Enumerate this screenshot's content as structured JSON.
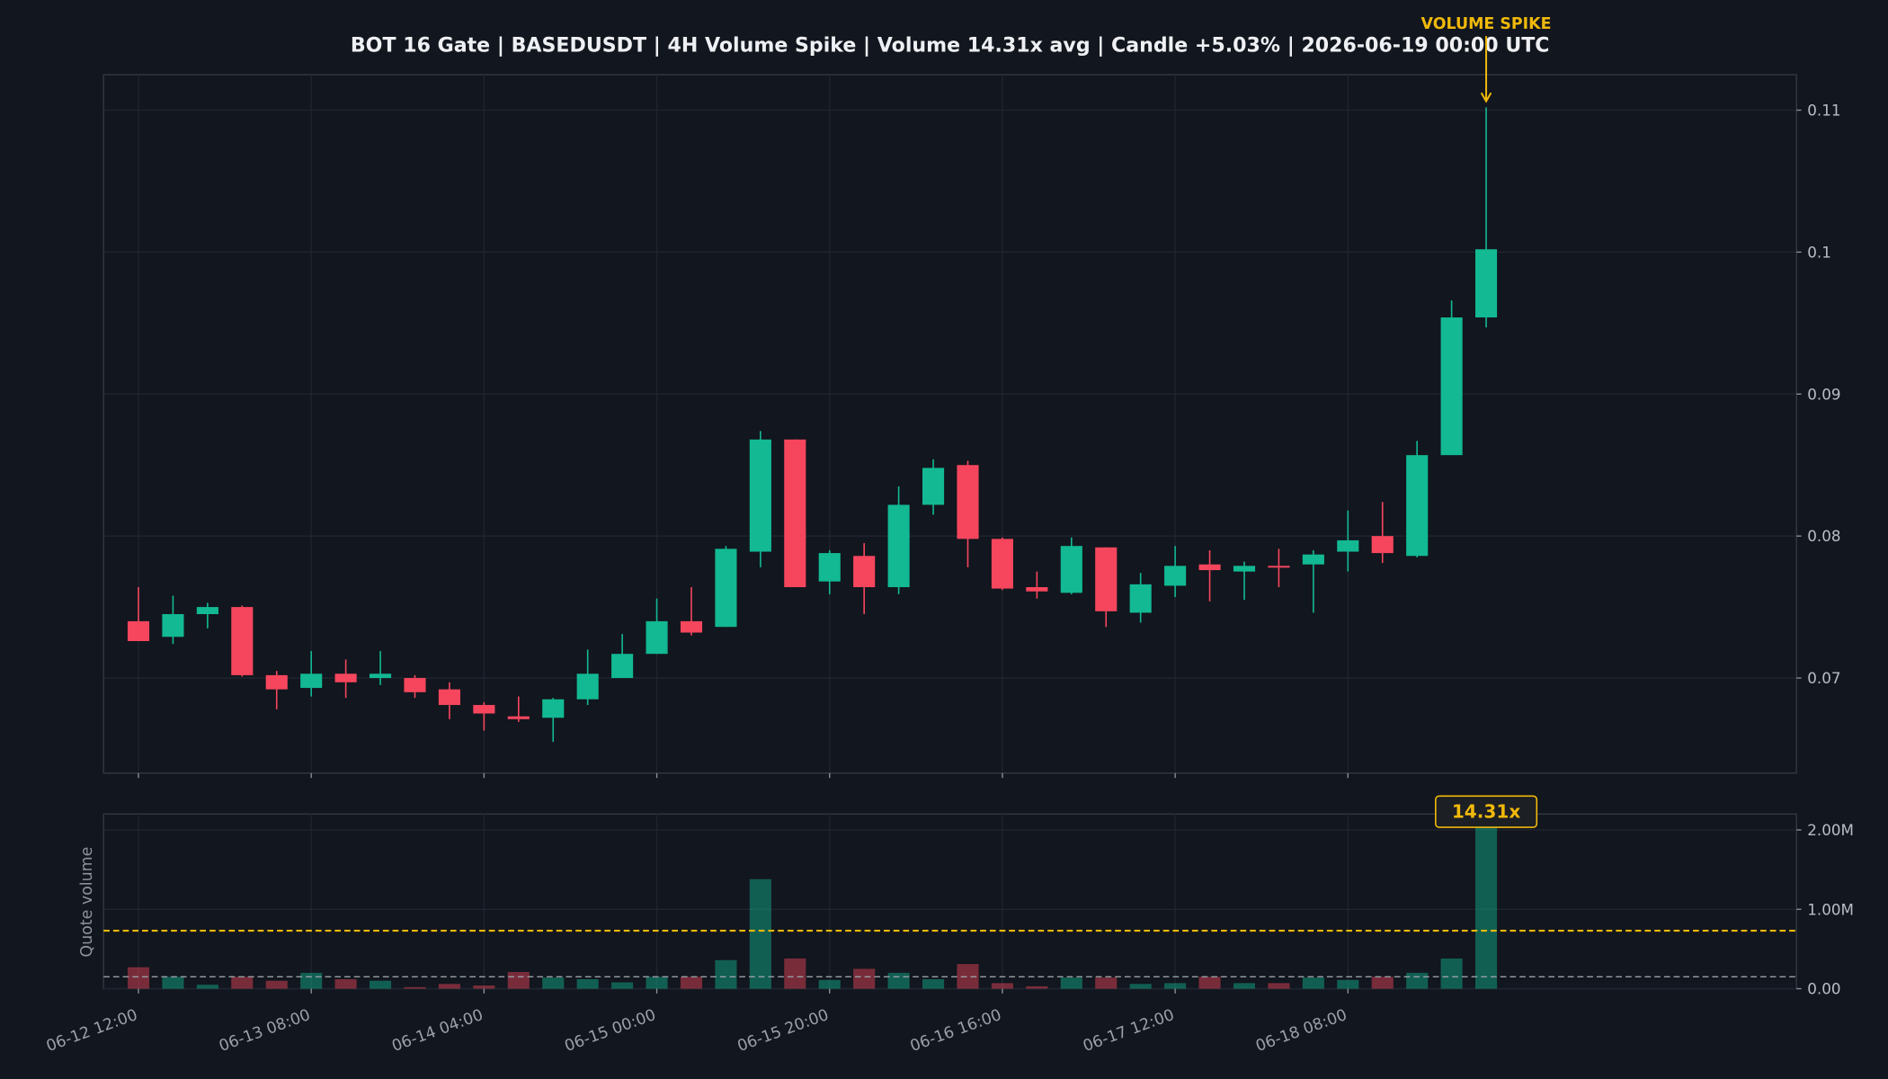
{
  "chart_data": [
    {
      "type": "candlestick",
      "title": "BOT 16 Gate | BASEDUSDT | 4H Volume Spike | Volume 14.31x avg | Candle +5.03% | 2026-06-19 00:00 UTC",
      "x": [
        "06-12 12:00",
        null,
        null,
        null,
        null,
        "06-13 08:00",
        null,
        null,
        null,
        null,
        "06-14 04:00",
        null,
        null,
        null,
        null,
        "06-15 00:00",
        null,
        null,
        null,
        null,
        "06-15 20:00",
        null,
        null,
        null,
        null,
        "06-16 16:00",
        null,
        null,
        null,
        null,
        "06-17 12:00",
        null,
        null,
        null,
        null,
        "06-18 08:00",
        null,
        null,
        null,
        null
      ],
      "open": [
        0.074,
        0.0729,
        0.0745,
        0.075,
        0.0702,
        0.0693,
        0.0703,
        0.07,
        0.07,
        0.0692,
        0.0681,
        0.0673,
        0.0672,
        0.0685,
        0.07,
        0.0717,
        0.074,
        0.0736,
        0.0789,
        0.0868,
        0.0768,
        0.0786,
        0.0764,
        0.0822,
        0.085,
        0.0798,
        0.0764,
        0.076,
        0.0792,
        0.0746,
        0.0765,
        0.078,
        0.0775,
        0.0779,
        0.078,
        0.0789,
        0.08,
        0.0786,
        0.0857,
        0.0954
      ],
      "high": [
        0.0764,
        0.0758,
        0.0753,
        0.0751,
        0.0705,
        0.0719,
        0.0713,
        0.0719,
        0.0702,
        0.0697,
        0.0683,
        0.0687,
        0.0686,
        0.072,
        0.0731,
        0.0756,
        0.0764,
        0.0793,
        0.0874,
        0.0868,
        0.079,
        0.0795,
        0.0835,
        0.0854,
        0.0853,
        0.0799,
        0.0775,
        0.0799,
        0.0792,
        0.0774,
        0.0793,
        0.079,
        0.0782,
        0.0791,
        0.079,
        0.0818,
        0.0824,
        0.0867,
        0.0966,
        0.1102
      ],
      "low": [
        0.0726,
        0.0724,
        0.0735,
        0.0701,
        0.0678,
        0.0687,
        0.0686,
        0.0695,
        0.0686,
        0.0671,
        0.0663,
        0.0669,
        0.0655,
        0.0681,
        0.07,
        0.0717,
        0.073,
        0.0736,
        0.0778,
        0.0764,
        0.0759,
        0.0745,
        0.0759,
        0.0815,
        0.0778,
        0.0762,
        0.0756,
        0.0759,
        0.0736,
        0.0739,
        0.0757,
        0.0754,
        0.0755,
        0.0764,
        0.0746,
        0.0775,
        0.0781,
        0.0785,
        0.0857,
        0.0947
      ],
      "close": [
        0.0726,
        0.0745,
        0.075,
        0.0702,
        0.0692,
        0.0703,
        0.0697,
        0.0703,
        0.069,
        0.0681,
        0.0675,
        0.0671,
        0.0685,
        0.0703,
        0.0717,
        0.074,
        0.0732,
        0.0791,
        0.0868,
        0.0764,
        0.0788,
        0.0764,
        0.0822,
        0.0848,
        0.0798,
        0.0763,
        0.0761,
        0.0793,
        0.0747,
        0.0766,
        0.0779,
        0.0776,
        0.0779,
        0.0778,
        0.0787,
        0.0797,
        0.0788,
        0.0857,
        0.0954,
        0.1002
      ],
      "up_color": "#12b993",
      "down_color": "#f6465d",
      "ylim": [
        0.0633,
        0.1125
      ],
      "yticks": [
        0.07,
        0.08,
        0.09,
        0.1,
        0.11
      ],
      "grid": true,
      "annotation": "VOLUME SPIKE",
      "annotation_color": "#f0b90b"
    },
    {
      "type": "bar",
      "ylabel": "Quote volume",
      "values": [
        270000,
        150000,
        50000,
        150000,
        100000,
        200000,
        120000,
        100000,
        20000,
        60000,
        40000,
        210000,
        140000,
        120000,
        80000,
        150000,
        150000,
        360000,
        1380000,
        380000,
        110000,
        250000,
        200000,
        120000,
        310000,
        70000,
        30000,
        140000,
        140000,
        60000,
        70000,
        150000,
        70000,
        70000,
        140000,
        110000,
        150000,
        200000,
        380000,
        2150000
      ],
      "ylim": [
        0,
        2200000
      ],
      "yticks": [
        {
          "value": 0,
          "label": "0.00"
        },
        {
          "value": 1000000,
          "label": "1.00M"
        },
        {
          "value": 2000000,
          "label": "2.00M"
        }
      ],
      "hlines": [
        {
          "value": 730000,
          "color": "#f0b90b"
        },
        {
          "value": 150000,
          "color": "#9aa0a6"
        }
      ],
      "grid": true,
      "annotation": "14.31x",
      "annotation_color": "#f0b90b"
    }
  ]
}
